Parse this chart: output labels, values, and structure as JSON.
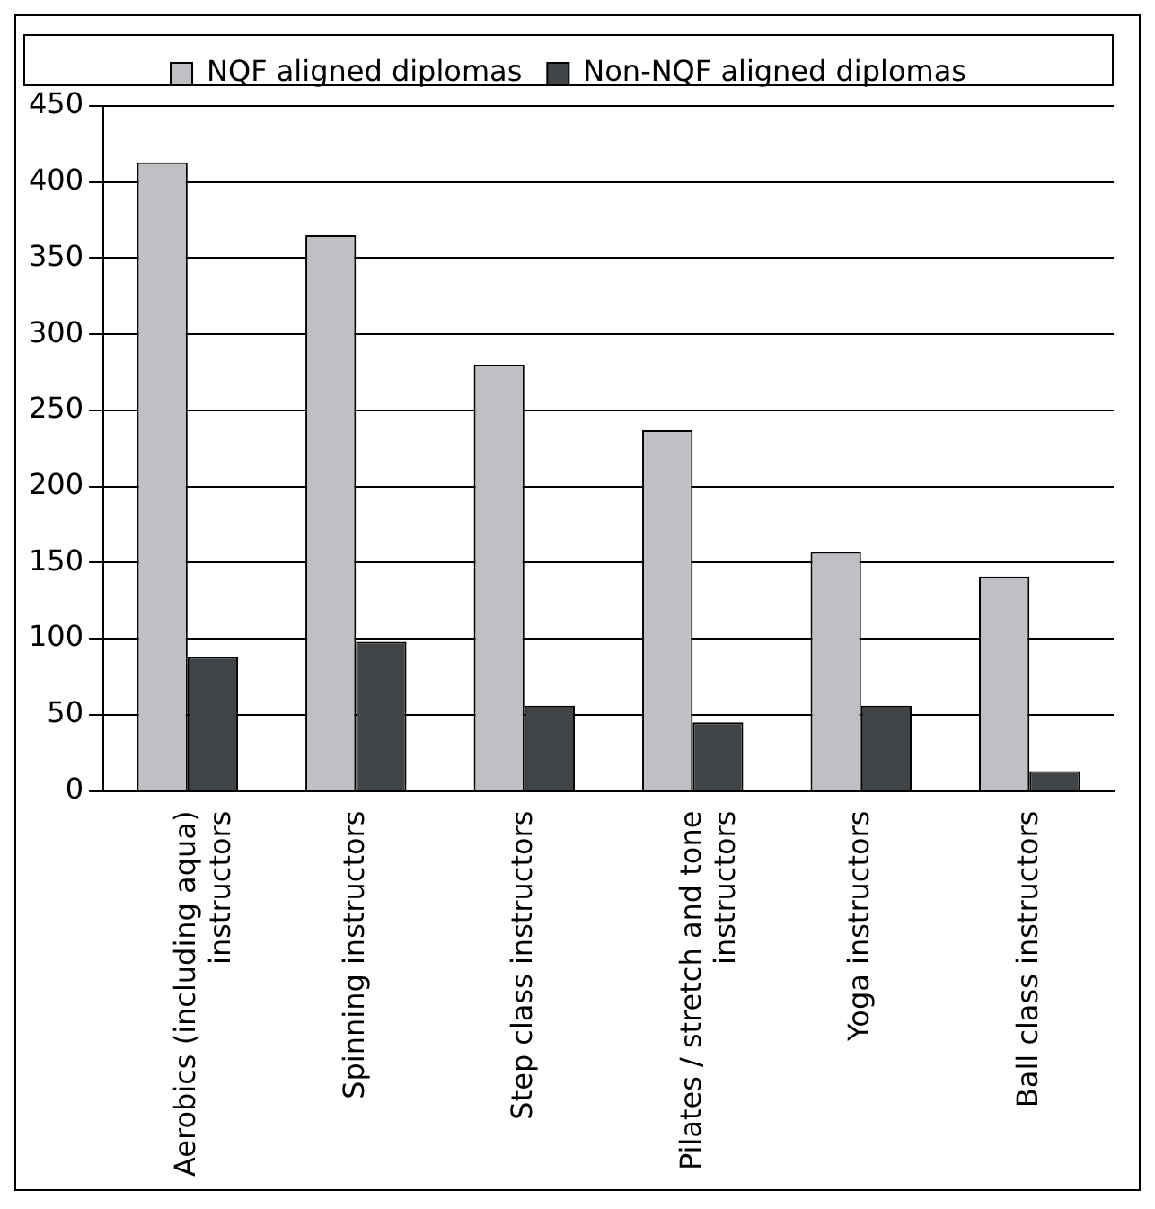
{
  "chart_data": {
    "type": "bar",
    "categories": [
      "Aerobics (including aqua) instructors",
      "Spinning instructors",
      "Step class instructors",
      "Pilates / stretch and tone instructors",
      "Yoga instructors",
      "Ball class instructors"
    ],
    "series": [
      {
        "name": "NQF aligned diplomas",
        "color": "#c0c0c4",
        "values": [
          413,
          365,
          280,
          237,
          157,
          141
        ]
      },
      {
        "name": "Non-NQF aligned diplomas",
        "color": "#404447",
        "values": [
          88,
          98,
          56,
          45,
          56,
          13
        ]
      }
    ],
    "ylim": [
      0,
      450
    ],
    "yticks": [
      0,
      50,
      100,
      150,
      200,
      250,
      300,
      350,
      400,
      450
    ],
    "grid": "y",
    "legend": "top"
  }
}
